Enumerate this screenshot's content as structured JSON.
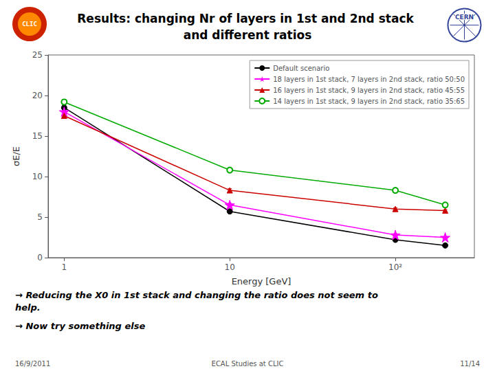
{
  "chart_data": {
    "type": "line",
    "title": "Results: changing Nr of layers in 1st and 2nd stack and different ratios",
    "xlabel": "Energy [GeV]",
    "ylabel": "σE/E",
    "x": [
      1,
      10,
      100,
      200
    ],
    "series": [
      {
        "name": "Default scenario",
        "color": "black",
        "marker": "circle",
        "values": [
          18.5,
          5.7,
          2.2,
          1.5
        ],
        "errors": [
          0.3,
          0.15,
          0.1,
          0.1
        ]
      },
      {
        "name": "18 layers in 1st stack, 7 layers in 2nd stack, ratio 50:50",
        "color": "#ff00ff",
        "marker": "star",
        "values": [
          18.0,
          6.5,
          2.8,
          2.5
        ],
        "errors": [
          0.3,
          0.2,
          0.15,
          0.12
        ]
      },
      {
        "name": "16 layers in 1st stack, 9 layers in 2nd stack, ratio 45:55",
        "color": "#cc0000",
        "marker": "triangle",
        "values": [
          17.5,
          8.3,
          6.0,
          5.8
        ],
        "errors": [
          0.3,
          0.2,
          0.15,
          0.12
        ]
      },
      {
        "name": "14 layers in 1st stack, 9 layers in 2nd stack, ratio 35:65",
        "color": "#00aa00",
        "marker": "circle-open",
        "values": [
          19.2,
          10.8,
          8.3,
          6.5
        ],
        "errors": [
          0.3,
          0.2,
          0.15,
          0.12
        ]
      }
    ],
    "log": "x",
    "xlim": [
      0.8,
      300
    ],
    "xticks": [
      1,
      10,
      {
        "value": 100,
        "label": "10²"
      }
    ],
    "ylim": [
      0,
      25
    ],
    "yticks": [
      0,
      5,
      10,
      15,
      20,
      25
    ],
    "grid": false,
    "legend": "upper right",
    "annotations": [
      "→ Reducing the X0 in 1st stack and changing the ratio does not seem to help.",
      "→ Now try something else",
      "16/9/2011",
      "ECAL Studies at CLIC",
      "11/14",
      "CLIC",
      "CERN"
    ]
  }
}
